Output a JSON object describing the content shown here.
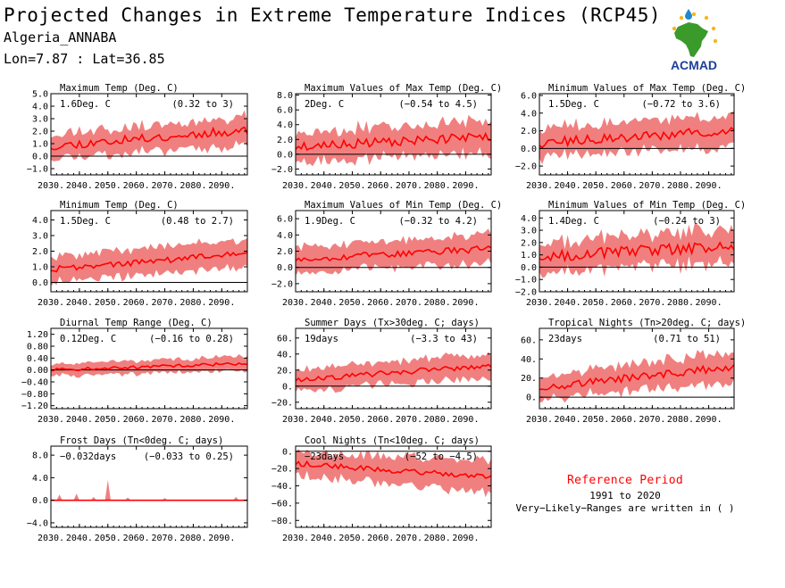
{
  "header": {
    "title": "Projected Changes in Extreme Temperature Indices (RCP45)",
    "station": "Algeria_ANNABA",
    "coords": "Lon=7.87 : Lat=36.85",
    "logo_text": "ACMAD"
  },
  "reference": {
    "title": "Reference Period",
    "years": "1991 to 2020",
    "note": "Very−Likely−Ranges are written in ( )"
  },
  "colors": {
    "band": "#f08080",
    "line": "#ff0000",
    "zero_line": "#000000",
    "reference_title": "#ff0000",
    "logo_text": "#1e3f99",
    "logo_map": "#3a9a2a",
    "logo_sun": "#f5b81b"
  },
  "chart_data": [
    {
      "type": "area",
      "title": "Maximum Temp (Deg. C)",
      "value_label": "1.6Deg. C",
      "range_label": "(0.32 to 3)",
      "x_ticks": [
        "2030.",
        "2040.",
        "2050.",
        "2060.",
        "2070.",
        "2080.",
        "2090."
      ],
      "xlim": [
        2030,
        2099
      ],
      "ylim": [
        -1.5,
        5.0
      ],
      "y_ticks": [
        -1.0,
        0.0,
        1.0,
        2.0,
        3.0,
        4.0,
        5.0
      ],
      "y_tick_labels": [
        "−1.0",
        "0.0",
        "1.0",
        "2.0",
        "3.0",
        "4.0",
        "5.0"
      ],
      "trend": [
        0.8,
        2.1
      ],
      "amp": 0.35,
      "band": [
        1.2,
        1.4
      ],
      "seed": 11
    },
    {
      "type": "area",
      "title": "Maximum Values of Max Temp (Deg. C)",
      "value_label": "2Deg. C",
      "range_label": "(−0.54 to 4.5)",
      "x_ticks": [
        "2030.",
        "2040.",
        "2050.",
        "2060.",
        "2070.",
        "2080.",
        "2090."
      ],
      "xlim": [
        2030,
        2099
      ],
      "ylim": [
        -2.8,
        8.2
      ],
      "y_ticks": [
        -2.0,
        0.0,
        2.0,
        4.0,
        6.0,
        8.0
      ],
      "y_tick_labels": [
        "−2.0",
        "0.0",
        "2.0",
        "4.0",
        "6.0",
        "8.0"
      ],
      "trend": [
        1.0,
        2.4
      ],
      "amp": 0.6,
      "band": [
        2.5,
        2.7
      ],
      "seed": 23
    },
    {
      "type": "area",
      "title": "Minimum Values of Max Temp (Deg. C)",
      "value_label": "1.5Deg. C",
      "range_label": "(−0.72 to 3.6)",
      "x_ticks": [
        "2030.",
        "2040.",
        "2050.",
        "2060.",
        "2070.",
        "2080.",
        "2090."
      ],
      "xlim": [
        2030,
        2099
      ],
      "ylim": [
        -3.0,
        6.2
      ],
      "y_ticks": [
        -2.0,
        0.0,
        2.0,
        4.0,
        6.0
      ],
      "y_tick_labels": [
        "−2.0",
        "0.0",
        "2.0",
        "4.0",
        "6.0"
      ],
      "trend": [
        0.6,
        2.0
      ],
      "amp": 0.55,
      "band": [
        2.0,
        2.2
      ],
      "seed": 37
    },
    {
      "type": "area",
      "title": "Minimum Temp (Deg. C)",
      "value_label": "1.5Deg. C",
      "range_label": "(0.48 to 2.7)",
      "x_ticks": [
        "2030.",
        "2040.",
        "2050.",
        "2060.",
        "2070.",
        "2080.",
        "2090."
      ],
      "xlim": [
        2030,
        2099
      ],
      "ylim": [
        -0.6,
        4.6
      ],
      "y_ticks": [
        0.0,
        1.0,
        2.0,
        3.0,
        4.0
      ],
      "y_tick_labels": [
        "0.0",
        "1.0",
        "2.0",
        "3.0",
        "4.0"
      ],
      "trend": [
        0.85,
        1.85
      ],
      "amp": 0.2,
      "band": [
        1.0,
        1.1
      ],
      "seed": 41
    },
    {
      "type": "area",
      "title": "Maximum Values of Min Temp (Deg. C)",
      "value_label": "1.9Deg. C",
      "range_label": "(−0.32 to 4.2)",
      "x_ticks": [
        "2030.",
        "2040.",
        "2050.",
        "2060.",
        "2070.",
        "2080.",
        "2090."
      ],
      "xlim": [
        2030,
        2099
      ],
      "ylim": [
        -3.0,
        7.0
      ],
      "y_ticks": [
        -2.0,
        0.0,
        2.0,
        4.0,
        6.0
      ],
      "y_tick_labels": [
        "−2.0",
        "0.0",
        "2.0",
        "4.0",
        "6.0"
      ],
      "trend": [
        1.0,
        2.3
      ],
      "amp": 0.4,
      "band": [
        2.0,
        2.2
      ],
      "seed": 53
    },
    {
      "type": "area",
      "title": "Minimum Values of Min Temp (Deg. C)",
      "value_label": "1.4Deg. C",
      "range_label": "(−0.24 to 3)",
      "x_ticks": [
        "2030.",
        "2040.",
        "2050.",
        "2060.",
        "2070.",
        "2080.",
        "2090."
      ],
      "xlim": [
        2030,
        2099
      ],
      "ylim": [
        -2.0,
        4.6
      ],
      "y_ticks": [
        -2.0,
        -1.0,
        0.0,
        1.0,
        2.0,
        3.0,
        4.0
      ],
      "y_tick_labels": [
        "−2.0",
        "−1.0",
        "0.0",
        "1.0",
        "2.0",
        "3.0",
        "4.0"
      ],
      "trend": [
        0.9,
        1.7
      ],
      "amp": 0.45,
      "band": [
        1.5,
        1.7
      ],
      "seed": 67
    },
    {
      "type": "area",
      "title": "Diurnal Temp Range (Deg. C)",
      "value_label": "0.12Deg. C",
      "range_label": "(−0.16 to 0.28)",
      "x_ticks": [
        "2030.",
        "2040.",
        "2050.",
        "2060.",
        "2070.",
        "2080.",
        "2090."
      ],
      "xlim": [
        2030,
        2099
      ],
      "ylim": [
        -1.3,
        1.4
      ],
      "y_ticks": [
        -1.2,
        -0.8,
        -0.4,
        0.0,
        0.4,
        0.8,
        1.2
      ],
      "y_tick_labels": [
        "−1.20",
        "−0.80",
        "−0.40",
        "0.00",
        "0.40",
        "0.80",
        "1.20"
      ],
      "trend": [
        0.0,
        0.22
      ],
      "amp": 0.05,
      "band": [
        0.25,
        0.3
      ],
      "seed": 71
    },
    {
      "type": "area",
      "title": "Summer Days (Tx>30deg. C; days)",
      "value_label": "19days",
      "range_label": "(−3.3 to 43)",
      "x_ticks": [
        "2030.",
        "2040.",
        "2050.",
        "2060.",
        "2070.",
        "2080.",
        "2090."
      ],
      "xlim": [
        2030,
        2099
      ],
      "ylim": [
        -28,
        72
      ],
      "y_ticks": [
        -20,
        0,
        20,
        40,
        60
      ],
      "y_tick_labels": [
        "−20.",
        "0.",
        "20.",
        "40.",
        "60."
      ],
      "trend": [
        8,
        26
      ],
      "amp": 3.5,
      "band": [
        16,
        20
      ],
      "seed": 83
    },
    {
      "type": "area",
      "title": "Tropical Nights (Tn>20deg. C; days)",
      "value_label": "23days",
      "range_label": "(0.71 to 51)",
      "x_ticks": [
        "2030.",
        "2040.",
        "2050.",
        "2060.",
        "2070.",
        "2080.",
        "2090."
      ],
      "xlim": [
        2030,
        2099
      ],
      "ylim": [
        -12,
        72
      ],
      "y_ticks": [
        0,
        20,
        40,
        60
      ],
      "y_tick_labels": [
        "0.",
        "20.",
        "40.",
        "60."
      ],
      "trend": [
        10,
        32
      ],
      "amp": 4,
      "band": [
        14,
        20
      ],
      "seed": 97
    },
    {
      "type": "area",
      "title": "Frost Days (Tn<0deg. C; days)",
      "value_label": "−0.032days",
      "range_label": "(−0.033 to 0.25)",
      "x_ticks": [
        "2030.",
        "2040.",
        "2050.",
        "2060.",
        "2070.",
        "2080.",
        "2090."
      ],
      "xlim": [
        2030,
        2099
      ],
      "ylim": [
        -4.8,
        9.6
      ],
      "y_ticks": [
        -4.0,
        0.0,
        4.0,
        8.0
      ],
      "y_tick_labels": [
        "−4.0",
        "0.0",
        "4.0",
        "8.0"
      ],
      "trend": [
        0,
        0
      ],
      "amp": 0,
      "band": [
        0.3,
        0.3
      ],
      "spikes": [
        [
          2033,
          1.0
        ],
        [
          2039,
          1.2
        ],
        [
          2045,
          0.6
        ],
        [
          2050,
          3.6
        ],
        [
          2057,
          0.5
        ],
        [
          2070,
          0.4
        ],
        [
          2095,
          0.6
        ]
      ],
      "seed": 101
    },
    {
      "type": "area",
      "title": "Cool Nights (Tn<10deg. C; days)",
      "value_label": "−23days",
      "range_label": "(−52 to −4.5)",
      "x_ticks": [
        "2030.",
        "2040.",
        "2050.",
        "2060.",
        "2070.",
        "2080.",
        "2090."
      ],
      "xlim": [
        2030,
        2099
      ],
      "ylim": [
        -88,
        6
      ],
      "y_ticks": [
        0,
        -20,
        -40,
        -60,
        -80
      ],
      "y_tick_labels": [
        "0.",
        "−20.",
        "−40.",
        "−60.",
        "−80."
      ],
      "trend": [
        -14,
        -30
      ],
      "amp": 3,
      "band": [
        16,
        24
      ],
      "seed": 113
    }
  ]
}
